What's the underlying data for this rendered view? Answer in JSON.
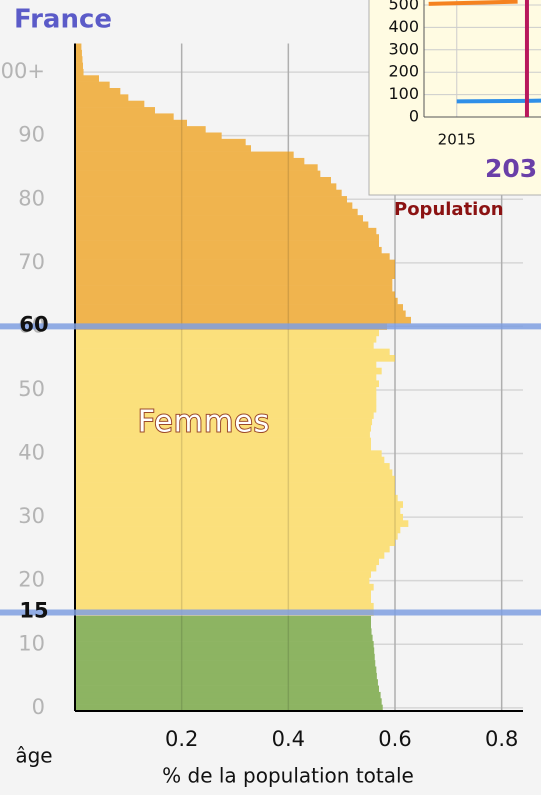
{
  "chart_data": [
    {
      "type": "hbar",
      "title": "France",
      "annotation": "Femmes",
      "ylabel": "âge",
      "xlabel": "% de la population totale",
      "xlim": [
        0,
        0.84
      ],
      "xticks": [
        0.2,
        0.4,
        0.6,
        0.8
      ],
      "ylim": [
        -0.5,
        104.5
      ],
      "yticks": [
        0,
        10,
        20,
        30,
        40,
        50,
        60,
        70,
        80,
        90,
        {
          "value": 100,
          "label": "100+"
        }
      ],
      "age_markers": [
        15,
        60
      ],
      "grid": true,
      "series": [
        {
          "color": "#8db462",
          "categories": [
            0,
            1,
            2,
            3,
            4,
            5,
            6,
            7,
            8,
            9,
            10,
            11,
            12,
            13,
            14
          ],
          "values": [
            0.577,
            0.575,
            0.573,
            0.57,
            0.568,
            0.566,
            0.565,
            0.563,
            0.562,
            0.561,
            0.56,
            0.558,
            0.556,
            0.555,
            0.555
          ]
        },
        {
          "color": "#fbe07c",
          "categories": [
            15,
            16,
            17,
            18,
            19,
            20,
            21,
            22,
            23,
            24,
            25,
            26,
            27,
            28,
            29,
            30,
            31,
            32,
            33,
            34,
            35,
            36,
            37,
            38,
            39,
            40,
            41,
            42,
            43,
            44,
            45,
            46,
            47,
            48,
            49,
            50,
            51,
            52,
            53,
            54,
            55,
            56,
            57,
            58,
            59
          ],
          "values": [
            0.56,
            0.56,
            0.555,
            0.555,
            0.56,
            0.552,
            0.555,
            0.565,
            0.57,
            0.58,
            0.59,
            0.6,
            0.605,
            0.61,
            0.625,
            0.615,
            0.61,
            0.615,
            0.605,
            0.6,
            0.6,
            0.6,
            0.595,
            0.59,
            0.58,
            0.575,
            0.555,
            0.555,
            0.553,
            0.555,
            0.557,
            0.56,
            0.565,
            0.565,
            0.565,
            0.565,
            0.57,
            0.565,
            0.575,
            0.565,
            0.6,
            0.59,
            0.56,
            0.565,
            0.57
          ]
        },
        {
          "color": "#f0b44e",
          "categories": [
            60,
            61,
            62,
            63,
            64,
            65,
            66,
            67,
            68,
            69,
            70,
            71,
            72,
            73,
            74,
            75,
            76,
            77,
            78,
            79,
            80,
            81,
            82,
            83,
            84,
            85,
            86,
            87,
            88,
            89,
            90,
            91,
            92,
            93,
            94,
            95,
            96,
            97,
            98,
            99,
            100,
            101,
            102,
            103,
            104
          ],
          "values": [
            0.585,
            0.63,
            0.62,
            0.615,
            0.605,
            0.6,
            0.595,
            0.595,
            0.6,
            0.6,
            0.6,
            0.59,
            0.575,
            0.57,
            0.57,
            0.565,
            0.55,
            0.54,
            0.53,
            0.52,
            0.51,
            0.5,
            0.49,
            0.48,
            0.46,
            0.455,
            0.43,
            0.41,
            0.33,
            0.32,
            0.275,
            0.245,
            0.21,
            0.185,
            0.15,
            0.13,
            0.1,
            0.085,
            0.065,
            0.045,
            0.016,
            0.015,
            0.014,
            0.013,
            0.012
          ]
        }
      ]
    },
    {
      "type": "line",
      "title": "203",
      "subtitle": "Population",
      "xlim": [
        2008,
        2033
      ],
      "xticks": [
        2015
      ],
      "ylim": [
        0,
        520
      ],
      "yticks": [
        0,
        100,
        200,
        300,
        400,
        500
      ],
      "marker_x": 2030,
      "marker_color": "#b8185c",
      "series": [
        {
          "color": "#f5821f",
          "x": [
            2009,
            2028
          ],
          "values": [
            505,
            515
          ]
        },
        {
          "color": "#2f8fe8",
          "x": [
            2015,
            2030,
            2033
          ],
          "values": [
            70,
            72,
            73
          ]
        }
      ]
    }
  ]
}
